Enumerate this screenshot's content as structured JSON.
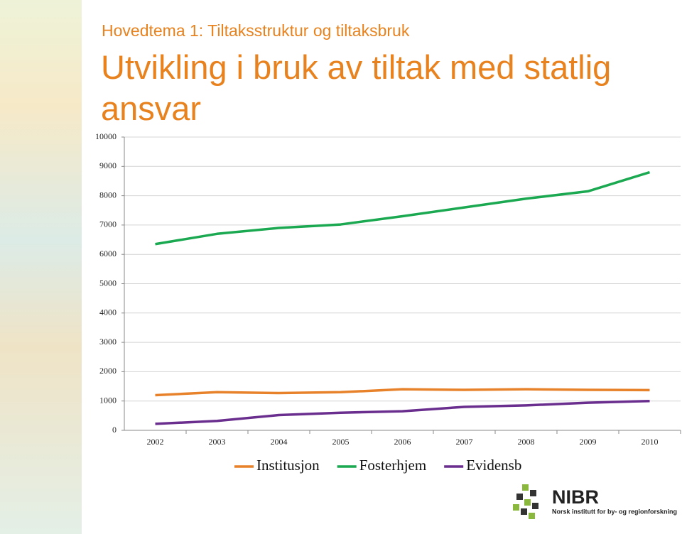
{
  "chart_data": {
    "type": "line",
    "subtitle": "Hovedtema 1: Tiltaksstruktur og tiltaksbruk",
    "title": "Utvikling i bruk av tiltak med statlig ansvar",
    "categories": [
      "2002",
      "2003",
      "2004",
      "2005",
      "2006",
      "2007",
      "2008",
      "2009",
      "2010"
    ],
    "series": [
      {
        "name": "Institusjon",
        "color": "#e8822a",
        "values": [
          1200,
          1300,
          1270,
          1300,
          1400,
          1380,
          1400,
          1380,
          1370
        ]
      },
      {
        "name": "Fosterhjem",
        "color": "#1aa850",
        "values": [
          6350,
          6700,
          6900,
          7020,
          7300,
          7600,
          7900,
          8150,
          8800
        ]
      },
      {
        "name": "Evidensb",
        "color": "#6a2e8e",
        "values": [
          220,
          320,
          520,
          600,
          650,
          800,
          850,
          940,
          1000
        ]
      }
    ],
    "ylim": [
      0,
      10000
    ],
    "yticks": [
      0,
      1000,
      2000,
      3000,
      4000,
      5000,
      6000,
      7000,
      8000,
      9000,
      10000
    ],
    "grid": true,
    "legend": "bottom"
  },
  "logo": {
    "name": "NIBR",
    "caption": "Norsk institutt for by- og regionforskning"
  }
}
